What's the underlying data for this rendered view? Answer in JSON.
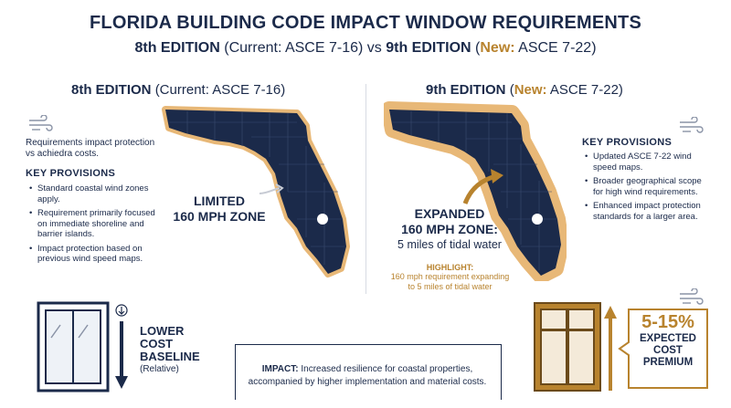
{
  "header": {
    "title": "FLORIDA BUILDING CODE IMPACT WINDOW REQUIREMENTS",
    "sub_8th": "8th EDITION",
    "sub_8th_paren": "(Current: ASCE 7-16)",
    "sub_vs": "vs",
    "sub_9th": "9th EDITION",
    "sub_open": "(",
    "sub_new": "New:",
    "sub_9th_rest": "ASCE 7-22)"
  },
  "left": {
    "heading_bold": "8th EDITION",
    "heading_rest": "(Current: ASCE 7-16)",
    "intro": "Requirements impact protection vs achiedra costs.",
    "kp_title": "KEY PROVISIONS",
    "provisions": [
      "Standard coastal wind zones apply.",
      "Requirement primarily focused on immediate shoreline and barrier islands.",
      "Impact protection based on previous wind speed maps."
    ],
    "zone_line1": "LIMITED",
    "zone_line2": "160 MPH ZONE",
    "cost_line1": "LOWER",
    "cost_line2": "COST",
    "cost_line3": "BASELINE",
    "cost_line4": "(Relative)"
  },
  "right": {
    "heading_bold": "9th EDITION",
    "heading_open": "(",
    "heading_new": "New:",
    "heading_rest": "ASCE 7-22)",
    "kp_title": "KEY PROVISIONS",
    "provisions": [
      "Updated ASCE 7-22 wind speed maps.",
      "Broader geographical scope for high wind requirements.",
      "Enhanced impact protection standards for a larger area."
    ],
    "zone_line1": "EXPANDED",
    "zone_line2": "160 MPH ZONE:",
    "zone_line3": "5 miles of tidal water",
    "highlight_title": "HIGHLIGHT:",
    "highlight_body": "160 mph requirement expanding to 5 miles of tidal water",
    "premium_pct": "5-15%",
    "premium_line1": "EXPECTED",
    "premium_line2": "COST",
    "premium_line3": "PREMIUM"
  },
  "impact": {
    "label": "IMPACT:",
    "text": "Increased resilience for coastal properties, accompanied by higher implementation and material costs."
  },
  "colors": {
    "navy": "#1b2a4a",
    "gold": "#b8832e",
    "sand": "#e8b877"
  },
  "icons": [
    "wind-icon",
    "florida-map",
    "window-icon",
    "down-arrow-icon",
    "up-arrow-icon",
    "curved-arrow-icon"
  ]
}
